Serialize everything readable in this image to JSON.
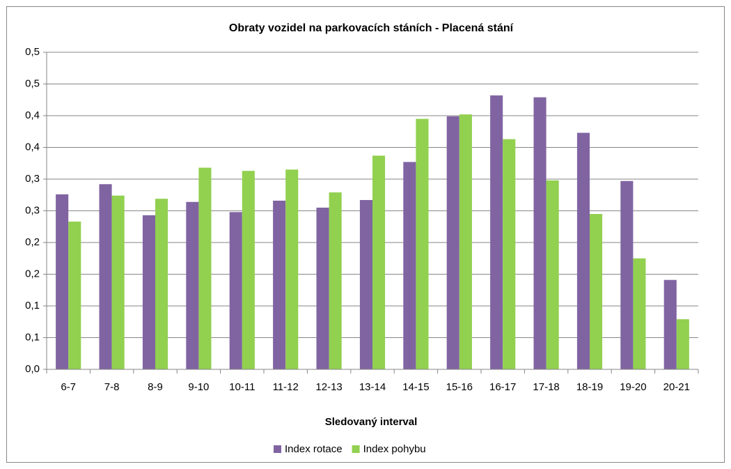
{
  "chart_data": {
    "type": "bar",
    "title": "Obraty vozidel na parkovacích stáních - Placená stání",
    "x_label": "Sledovaný interval",
    "categories": [
      "6-7",
      "7-8",
      "8-9",
      "9-10",
      "10-11",
      "11-12",
      "12-13",
      "13-14",
      "14-15",
      "15-16",
      "16-17",
      "17-18",
      "18-19",
      "19-20",
      "20-21"
    ],
    "series": [
      {
        "name": "Index rotace",
        "color": "#8064a2",
        "values": [
          0.276,
          0.292,
          0.243,
          0.264,
          0.248,
          0.266,
          0.255,
          0.267,
          0.327,
          0.399,
          0.432,
          0.429,
          0.373,
          0.297,
          0.141
        ]
      },
      {
        "name": "Index pohybu",
        "color": "#92d050",
        "values": [
          0.233,
          0.274,
          0.269,
          0.318,
          0.313,
          0.315,
          0.279,
          0.337,
          0.395,
          0.402,
          0.363,
          0.298,
          0.245,
          0.175,
          0.079
        ]
      }
    ],
    "ylim": [
      0,
      0.5
    ],
    "yticks": [
      {
        "value": 0,
        "label": "0,0"
      },
      {
        "value": 0.05,
        "label": "0,1"
      },
      {
        "value": 0.1,
        "label": "0,1"
      },
      {
        "value": 0.15,
        "label": "0,2"
      },
      {
        "value": 0.2,
        "label": "0,2"
      },
      {
        "value": 0.25,
        "label": "0,3"
      },
      {
        "value": 0.3,
        "label": "0,3"
      },
      {
        "value": 0.35,
        "label": "0,4"
      },
      {
        "value": 0.4,
        "label": "0,4"
      },
      {
        "value": 0.45,
        "label": "0,5"
      },
      {
        "value": 0.5,
        "label": "0,5"
      }
    ],
    "grid": true,
    "legend": "bottom"
  }
}
